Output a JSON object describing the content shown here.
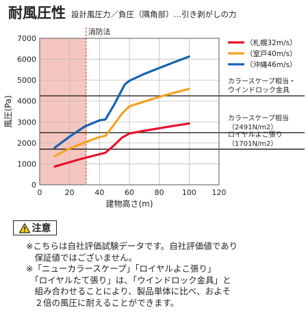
{
  "header": {
    "title": "耐風圧性",
    "subtitle": "設計風圧力／負圧（隅角部）…引き剥がしの力"
  },
  "chart_data": {
    "type": "line",
    "xlabel": "建物高さ(m)",
    "ylabel": "風圧(Pa)",
    "xlim": [
      0,
      120
    ],
    "ylim": [
      0,
      7000
    ],
    "xticks": [
      0,
      20,
      40,
      60,
      80,
      100,
      120
    ],
    "yticks": [
      0,
      1000,
      2000,
      3000,
      4000,
      5000,
      6000,
      7000
    ],
    "grid": true,
    "legend_position": "top-right",
    "series": [
      {
        "name": "（札幌32m/s）",
        "color": "#e8102a",
        "x": [
          10,
          20,
          30,
          40,
          44,
          50,
          55,
          60,
          70,
          80,
          90,
          100
        ],
        "y": [
          870,
          1080,
          1280,
          1460,
          1530,
          1900,
          2250,
          2450,
          2580,
          2700,
          2820,
          2930
        ]
      },
      {
        "name": "（室戸40m/s）",
        "color": "#f4a21e",
        "x": [
          10,
          20,
          30,
          40,
          44,
          50,
          55,
          60,
          70,
          80,
          90,
          100
        ],
        "y": [
          1370,
          1730,
          2020,
          2280,
          2340,
          2900,
          3400,
          3750,
          3980,
          4200,
          4400,
          4580
        ]
      },
      {
        "name": "（沖縄46m/s）",
        "color": "#1563b0",
        "x": [
          10,
          20,
          30,
          40,
          44,
          50,
          54,
          57,
          60,
          70,
          80,
          90,
          100
        ],
        "y": [
          1770,
          2300,
          2780,
          3080,
          3120,
          3850,
          4400,
          4800,
          4970,
          5300,
          5580,
          5860,
          6130
        ]
      }
    ],
    "region": {
      "label": "消防法",
      "x": [
        0,
        31
      ],
      "color": "#f5c6bf"
    },
    "reference_lines": [
      {
        "y": 4250,
        "label": "カラースケープ相当・\nウインドロック金具"
      },
      {
        "y": 2491,
        "label": "カラースケープ相当\n（2491N/m2）"
      },
      {
        "y": 1701,
        "label": "ロイヤルよこ張り\n（1701N/m2）"
      }
    ]
  },
  "caution": {
    "label": "注意"
  },
  "notes": {
    "line1": "※こちらは自社評価試験データです。自社評価値であり",
    "line2": "　保証値ではございません。",
    "line3": "※「ニューカラースケープ」「ロイヤルよこ張り」",
    "line4": "　「ロイヤルたて張り」は、「ウインドロック金具」と",
    "line5": "　組み合わせることにより、製品単体に比べ、およそ",
    "line6": "　２倍の風圧に耐えることができます。"
  }
}
